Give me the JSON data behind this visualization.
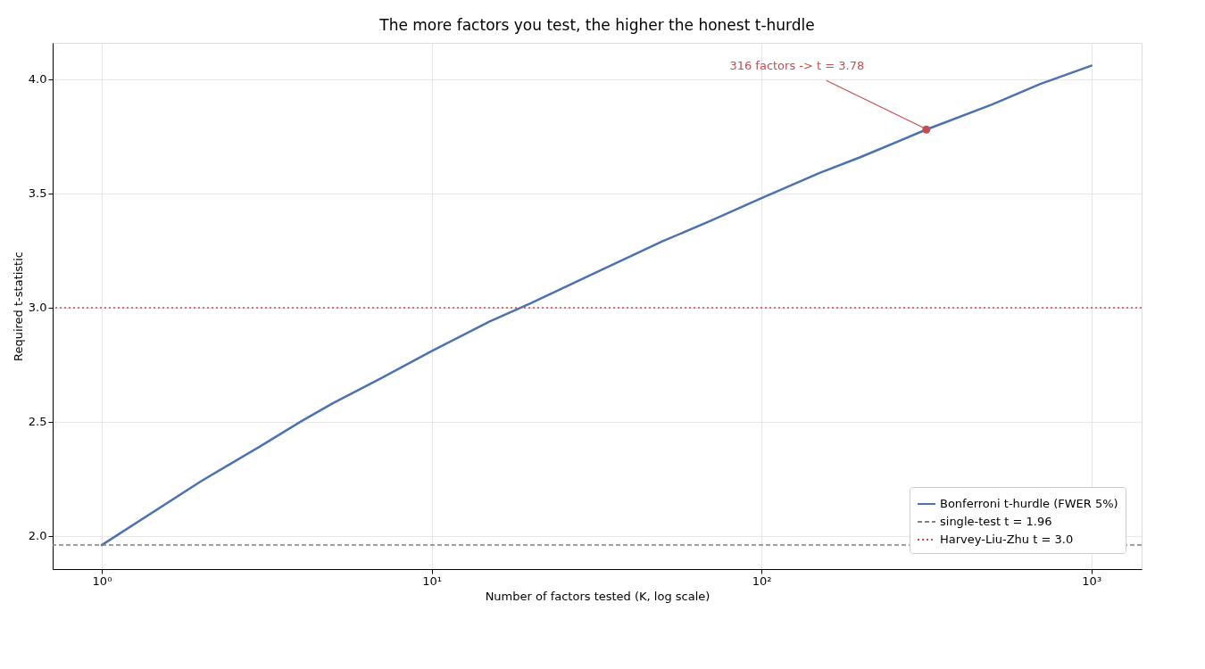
{
  "chart_data": {
    "type": "line",
    "title": "The more factors you test, the higher the honest t-hurdle",
    "xlabel": "Number of factors tested (K, log scale)",
    "ylabel": "Required t-statistic",
    "log": "x",
    "grid": true,
    "legend": "bottom right",
    "marker": "none",
    "line_style": "solid",
    "xlim": [
      0.71,
      1420
    ],
    "ylim": [
      1.855,
      4.16
    ],
    "xticks": [
      {
        "value": 1,
        "label": "10⁰"
      },
      {
        "value": 10,
        "label": "10¹"
      },
      {
        "value": 100,
        "label": "10²"
      },
      {
        "value": 1000,
        "label": "10³"
      }
    ],
    "yticks": [
      {
        "value": 2.0,
        "label": "2.0"
      },
      {
        "value": 2.5,
        "label": "2.5"
      },
      {
        "value": 3.0,
        "label": "3.0"
      },
      {
        "value": 3.5,
        "label": "3.5"
      },
      {
        "value": 4.0,
        "label": "4.0"
      }
    ],
    "series": [
      {
        "name": "Bonferroni t-hurdle (FWER 5%)",
        "color": "#4c72b0",
        "x": [
          1,
          2,
          3,
          4,
          5,
          7,
          10,
          15,
          20,
          30,
          50,
          70,
          100,
          150,
          200,
          316,
          500,
          700,
          1000
        ],
        "values": [
          1.96,
          2.24,
          2.39,
          2.5,
          2.58,
          2.69,
          2.81,
          2.94,
          3.02,
          3.14,
          3.29,
          3.38,
          3.48,
          3.59,
          3.66,
          3.78,
          3.89,
          3.98,
          4.06
        ]
      },
      {
        "type": "scatter",
        "marker": "circle",
        "color": "#c44e52",
        "x": [
          316
        ],
        "values": [
          3.78
        ]
      }
    ],
    "ref_lines": [
      {
        "axis": "y",
        "value": 1.96,
        "label": "single-test t = 1.96",
        "color": "#808080",
        "line_style": "dashed"
      },
      {
        "axis": "y",
        "value": 3.0,
        "label": "Harvey-Liu-Zhu t = 3.0",
        "color": "#d0454a",
        "line_style": "dotted"
      }
    ],
    "annotations": [
      {
        "text": "316 factors -> t = 3.78",
        "x": 316,
        "y": 3.78
      }
    ]
  }
}
